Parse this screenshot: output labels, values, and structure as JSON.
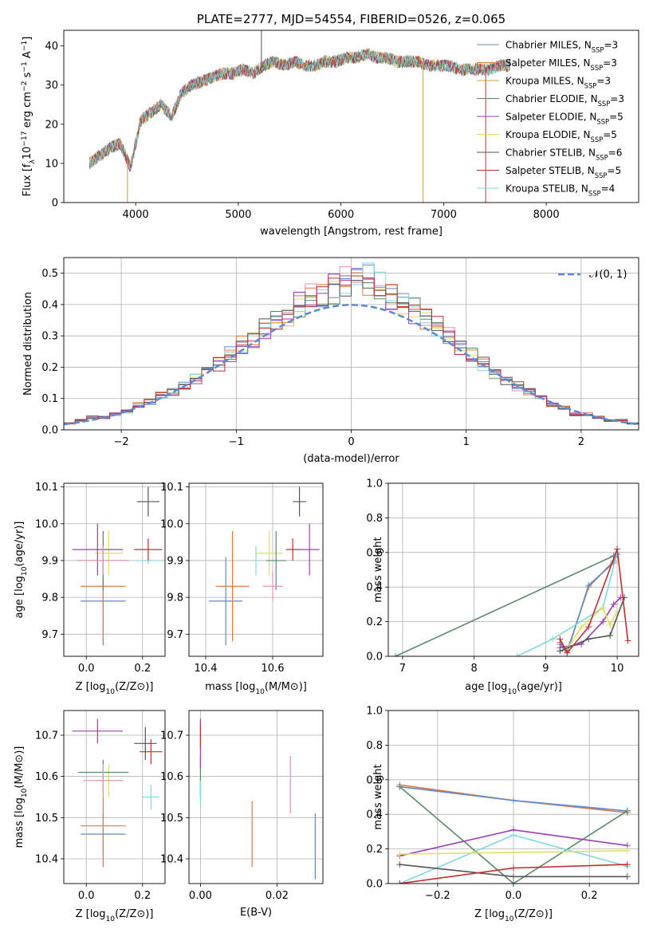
{
  "chart_data": [
    {
      "id": "spectrum",
      "type": "line",
      "title": "PLATE=2777, MJD=54554, FIBERID=0526, z=0.065",
      "xlabel": "wavelength [Angstrom, rest frame]",
      "ylabel_parts": [
        "Flux [f",
        "λ",
        "10",
        "−17",
        " erg cm",
        "−2",
        " s",
        "−1",
        " A",
        "−1",
        "]"
      ],
      "xlim": [
        3300,
        8900
      ],
      "ylim": [
        0,
        44
      ],
      "xticks": [
        4000,
        5000,
        6000,
        7000,
        8000
      ],
      "yticks": [
        0,
        10,
        20,
        30,
        40
      ],
      "grid": false,
      "legend_position": "top-right",
      "legend": [
        {
          "name": "Chabrier MILES",
          "nssp": "3",
          "color": "#5b8fa8"
        },
        {
          "name": "Salpeter MILES",
          "nssp": "3",
          "color": "#e27a3f"
        },
        {
          "name": "Kroupa MILES",
          "nssp": "3",
          "color": "#c8a040"
        },
        {
          "name": "Chabrier ELODIE",
          "nssp": "3",
          "color": "#5a8a6a"
        },
        {
          "name": "Salpeter ELODIE",
          "nssp": "5",
          "color": "#9a3fb5"
        },
        {
          "name": "Kroupa ELODIE",
          "nssp": "5",
          "color": "#e0e060"
        },
        {
          "name": "Chabrier STELIB",
          "nssp": "6",
          "color": "#555555"
        },
        {
          "name": "Salpeter STELIB",
          "nssp": "5",
          "color": "#c03030"
        },
        {
          "name": "Kroupa STELIB",
          "nssp": "4",
          "color": "#80d8e0"
        }
      ],
      "data_sub": "SSP",
      "x": [
        3550,
        3650,
        3750,
        3850,
        3950,
        4050,
        4150,
        4250,
        4350,
        4450,
        4550,
        4650,
        4750,
        4850,
        4950,
        5050,
        5150,
        5250,
        5350,
        5450,
        5550,
        5650,
        5750,
        5850,
        5950,
        6050,
        6150,
        6250,
        6350,
        6450,
        6550,
        6650,
        6750,
        6850,
        6950,
        7050,
        7150,
        7250,
        7350,
        7450,
        7550,
        7650
      ],
      "y": [
        10,
        12,
        14,
        15,
        9,
        21,
        23,
        25,
        22,
        28,
        30,
        31,
        32,
        33,
        33,
        34,
        33,
        35,
        36,
        35,
        36,
        35,
        35,
        36,
        36,
        37,
        37,
        38,
        37,
        37,
        36,
        36,
        36,
        35,
        35,
        35,
        34,
        34,
        34,
        34,
        35,
        35
      ]
    },
    {
      "id": "residuals",
      "type": "line",
      "xlabel": "(data-model)/error",
      "ylabel": "Normed distribution",
      "xlim": [
        -2.5,
        2.5
      ],
      "ylim": [
        0,
        0.55
      ],
      "xticks": [
        -2,
        -1,
        0,
        1,
        2
      ],
      "xtick_labels": [
        "−2",
        "−1",
        "0",
        "1",
        "2"
      ],
      "yticks": [
        0.0,
        0.1,
        0.2,
        0.3,
        0.4,
        0.5
      ],
      "ytick_labels": [
        "0.0",
        "0.1",
        "0.2",
        "0.3",
        "0.4",
        "0.5"
      ],
      "grid": true,
      "legend_position": "top-right",
      "legend": [
        {
          "name": "𝒩(0, 1)",
          "color": "#5b8ad8",
          "style": "dashed"
        }
      ],
      "bin_centers": [
        -2.45,
        -2.35,
        -2.25,
        -2.15,
        -2.05,
        -1.95,
        -1.85,
        -1.75,
        -1.65,
        -1.55,
        -1.45,
        -1.35,
        -1.25,
        -1.15,
        -1.05,
        -0.95,
        -0.85,
        -0.75,
        -0.65,
        -0.55,
        -0.45,
        -0.35,
        -0.25,
        -0.15,
        -0.05,
        0.05,
        0.15,
        0.25,
        0.35,
        0.45,
        0.55,
        0.65,
        0.75,
        0.85,
        0.95,
        1.05,
        1.15,
        1.25,
        1.35,
        1.45,
        1.55,
        1.65,
        1.75,
        1.85,
        1.95,
        2.05,
        2.15,
        2.25,
        2.35,
        2.45
      ],
      "histogram_heights": [
        0.02,
        0.03,
        0.04,
        0.04,
        0.05,
        0.06,
        0.08,
        0.09,
        0.11,
        0.12,
        0.14,
        0.16,
        0.18,
        0.21,
        0.24,
        0.27,
        0.29,
        0.32,
        0.35,
        0.37,
        0.4,
        0.42,
        0.43,
        0.45,
        0.47,
        0.47,
        0.48,
        0.46,
        0.43,
        0.4,
        0.38,
        0.35,
        0.33,
        0.3,
        0.27,
        0.24,
        0.21,
        0.18,
        0.16,
        0.14,
        0.12,
        0.1,
        0.08,
        0.07,
        0.05,
        0.05,
        0.04,
        0.03,
        0.03,
        0.02
      ],
      "histogram_count": 9
    },
    {
      "id": "age-vs-Z",
      "type": "scatter",
      "xlabel_parts": [
        "Z [log",
        "10",
        "(Z/Z",
        "⊙",
        ")]"
      ],
      "ylabel_parts": [
        "age  [log",
        "10",
        "(age/yr)]"
      ],
      "xlim": [
        -0.08,
        0.28
      ],
      "ylim": [
        9.64,
        10.11
      ],
      "xticks": [
        0.0,
        0.2
      ],
      "xtick_labels": [
        "0.0",
        "0.2"
      ],
      "yticks": [
        9.7,
        9.8,
        9.9,
        10.0,
        10.1
      ],
      "ytick_labels": [
        "9.7",
        "9.8",
        "9.9",
        "10.0",
        "10.1"
      ],
      "grid": true,
      "points": [
        {
          "x": 0.06,
          "y": 9.79,
          "xerr": 0.08,
          "yerr": 0.12,
          "color": "#5b8ad8"
        },
        {
          "x": 0.06,
          "y": 9.83,
          "xerr": 0.08,
          "yerr": 0.15,
          "color": "#e27a3f"
        },
        {
          "x": 0.08,
          "y": 9.92,
          "xerr": 0.05,
          "yerr": 0.06,
          "color": "#e0e060"
        },
        {
          "x": 0.06,
          "y": 9.9,
          "xerr": 0.09,
          "yerr": 0.08,
          "color": "#5a8a6a"
        },
        {
          "x": 0.04,
          "y": 9.93,
          "xerr": 0.09,
          "yerr": 0.07,
          "color": "#9a3fb5"
        },
        {
          "x": 0.22,
          "y": 9.9,
          "xerr": 0.05,
          "yerr": 0.01,
          "color": "#80d8e0"
        },
        {
          "x": 0.22,
          "y": 10.06,
          "xerr": 0.04,
          "yerr": 0.04,
          "color": "#555555"
        },
        {
          "x": 0.22,
          "y": 9.93,
          "xerr": 0.05,
          "yerr": 0.03,
          "color": "#c03030"
        },
        {
          "x": 0.06,
          "y": 9.9,
          "xerr": 0.09,
          "yerr": 0.04,
          "color": "#e48fb8"
        }
      ]
    },
    {
      "id": "age-vs-mass",
      "type": "scatter",
      "xlabel_parts": [
        "mass [log",
        "10",
        "(M/M",
        "⊙",
        ")]"
      ],
      "xlim": [
        10.35,
        10.75
      ],
      "ylim": [
        9.64,
        10.11
      ],
      "xticks": [
        10.4,
        10.6
      ],
      "xtick_labels": [
        "10.4",
        "10.6"
      ],
      "yticks": [
        9.7,
        9.8,
        9.9,
        10.0,
        10.1
      ],
      "ytick_labels": [
        "9.7",
        "9.8",
        "9.9",
        "10.0",
        "10.1"
      ],
      "grid": true,
      "points": [
        {
          "x": 10.46,
          "y": 9.79,
          "xerr": 0.05,
          "yerr": 0.12,
          "color": "#5b8ad8"
        },
        {
          "x": 10.48,
          "y": 9.83,
          "xerr": 0.05,
          "yerr": 0.15,
          "color": "#e27a3f"
        },
        {
          "x": 10.59,
          "y": 9.92,
          "xerr": 0.04,
          "yerr": 0.06,
          "color": "#e0e060"
        },
        {
          "x": 10.61,
          "y": 9.9,
          "xerr": 0.03,
          "yerr": 0.08,
          "color": "#5a8a6a"
        },
        {
          "x": 10.71,
          "y": 9.93,
          "xerr": 0.03,
          "yerr": 0.07,
          "color": "#9a3fb5"
        },
        {
          "x": 10.55,
          "y": 9.9,
          "xerr": 0.01,
          "yerr": 0.04,
          "color": "#80d8e0"
        },
        {
          "x": 10.68,
          "y": 10.06,
          "xerr": 0.02,
          "yerr": 0.04,
          "color": "#555555"
        },
        {
          "x": 10.66,
          "y": 9.93,
          "xerr": 0.02,
          "yerr": 0.03,
          "color": "#c03030"
        },
        {
          "x": 10.6,
          "y": 9.83,
          "xerr": 0.03,
          "yerr": 0.04,
          "color": "#e48fb8"
        }
      ]
    },
    {
      "id": "weight-vs-age",
      "type": "line",
      "xlabel_parts": [
        "age  [log",
        "10",
        "(age/yr)]"
      ],
      "ylabel": "mass weight",
      "xlim": [
        6.8,
        10.3
      ],
      "ylim": [
        0,
        1
      ],
      "xticks": [
        7,
        8,
        9,
        10
      ],
      "xtick_labels": [
        "7",
        "8",
        "9",
        "10"
      ],
      "yticks": [
        0.0,
        0.2,
        0.4,
        0.6,
        0.8,
        1.0
      ],
      "ytick_labels": [
        "0.0",
        "0.2",
        "0.4",
        "0.6",
        "0.8",
        "1.0"
      ],
      "grid": true,
      "series": [
        {
          "color": "#5a8a6a",
          "x": [
            6.9,
            9.95
          ],
          "y": [
            0.0,
            0.58
          ]
        },
        {
          "color": "#e27a3f",
          "x": [
            9.2,
            9.3,
            9.6,
            9.95,
            10.0
          ],
          "y": [
            0.08,
            0.03,
            0.4,
            0.55,
            0.6
          ]
        },
        {
          "color": "#5b8ad8",
          "x": [
            9.2,
            9.3,
            9.6,
            9.95,
            10.0
          ],
          "y": [
            0.07,
            0.02,
            0.41,
            0.54,
            0.59
          ]
        },
        {
          "color": "#80d8e0",
          "x": [
            8.6,
            9.1,
            9.8,
            10.0
          ],
          "y": [
            0.0,
            0.1,
            0.28,
            0.6
          ]
        },
        {
          "color": "#9a3fb5",
          "x": [
            9.2,
            9.5,
            9.8,
            9.95,
            10.05
          ],
          "y": [
            0.05,
            0.07,
            0.2,
            0.3,
            0.34
          ]
        },
        {
          "color": "#e0e060",
          "x": [
            9.3,
            9.5,
            9.8,
            9.9,
            10.0
          ],
          "y": [
            0.04,
            0.17,
            0.28,
            0.18,
            0.26
          ]
        },
        {
          "color": "#555555",
          "x": [
            9.2,
            9.6,
            9.9,
            10.1
          ],
          "y": [
            0.03,
            0.1,
            0.12,
            0.34
          ]
        },
        {
          "color": "#c03030",
          "x": [
            9.2,
            9.3,
            9.6,
            10.0,
            10.15
          ],
          "y": [
            0.1,
            0.02,
            0.17,
            0.62,
            0.09
          ]
        }
      ]
    },
    {
      "id": "mass-vs-Z",
      "type": "scatter",
      "xlabel_parts": [
        "Z [log",
        "10",
        "(Z/Z",
        "⊙",
        ")]"
      ],
      "ylabel_parts": [
        "mass [log",
        "10",
        "(M/M",
        "⊙",
        ")]"
      ],
      "xlim": [
        -0.08,
        0.28
      ],
      "ylim": [
        10.34,
        10.76
      ],
      "xticks": [
        0.0,
        0.2
      ],
      "xtick_labels": [
        "0.0",
        "0.2"
      ],
      "yticks": [
        10.4,
        10.5,
        10.6,
        10.7
      ],
      "ytick_labels": [
        "10.4",
        "10.5",
        "10.6",
        "10.7"
      ],
      "grid": true,
      "points": [
        {
          "x": 0.06,
          "y": 10.46,
          "xerr": 0.08,
          "yerr": 0.05,
          "color": "#5b8ad8"
        },
        {
          "x": 0.06,
          "y": 10.48,
          "xerr": 0.08,
          "yerr": 0.1,
          "color": "#e27a3f"
        },
        {
          "x": 0.08,
          "y": 10.59,
          "xerr": 0.05,
          "yerr": 0.04,
          "color": "#e0e060"
        },
        {
          "x": 0.06,
          "y": 10.61,
          "xerr": 0.09,
          "yerr": 0.03,
          "color": "#5a8a6a"
        },
        {
          "x": 0.04,
          "y": 10.71,
          "xerr": 0.09,
          "yerr": 0.03,
          "color": "#9a3fb5"
        },
        {
          "x": 0.23,
          "y": 10.55,
          "xerr": 0.03,
          "yerr": 0.03,
          "color": "#80d8e0"
        },
        {
          "x": 0.21,
          "y": 10.68,
          "xerr": 0.04,
          "yerr": 0.04,
          "color": "#555555"
        },
        {
          "x": 0.23,
          "y": 10.66,
          "xerr": 0.04,
          "yerr": 0.03,
          "color": "#c03030"
        },
        {
          "x": 0.06,
          "y": 10.59,
          "xerr": 0.07,
          "yerr": 0.04,
          "color": "#e48fb8"
        }
      ]
    },
    {
      "id": "mass-vs-EBV",
      "type": "scatter",
      "xlabel": "E(B-V)",
      "xlim": [
        -0.003,
        0.032
      ],
      "ylim": [
        10.34,
        10.76
      ],
      "xticks": [
        0.0,
        0.02
      ],
      "xtick_labels": [
        "0.00",
        "0.02"
      ],
      "yticks": [
        10.4,
        10.5,
        10.6,
        10.7
      ],
      "ytick_labels": [
        "10.4",
        "10.5",
        "10.6",
        "10.7"
      ],
      "grid": true,
      "points": [
        {
          "x": 0.03,
          "y": 10.43,
          "xerr": 0,
          "yerr": 0.08,
          "color": "#5b8ad8"
        },
        {
          "x": 0.0135,
          "y": 10.46,
          "xerr": 0,
          "yerr": 0.08,
          "color": "#e27a3f"
        },
        {
          "x": 0.0235,
          "y": 10.58,
          "xerr": 0,
          "yerr": 0.07,
          "color": "#e48fb8"
        },
        {
          "x": 0.0,
          "y": 10.58,
          "xerr": 0,
          "yerr": 0.05,
          "color": "#e0e060"
        },
        {
          "x": 0.0,
          "y": 10.6,
          "xerr": 0,
          "yerr": 0.05,
          "color": "#5a8a6a"
        },
        {
          "x": 0.0,
          "y": 10.68,
          "xerr": 0,
          "yerr": 0.06,
          "color": "#9a3fb5"
        },
        {
          "x": 0.0,
          "y": 10.7,
          "xerr": 0,
          "yerr": 0.03,
          "color": "#c03030"
        },
        {
          "x": 0.0,
          "y": 10.56,
          "xerr": 0,
          "yerr": 0.03,
          "color": "#80d8e0"
        }
      ]
    },
    {
      "id": "weight-vs-Z",
      "type": "line",
      "xlabel_parts": [
        "Z [log",
        "10",
        "(Z/Z",
        "⊙",
        ")]"
      ],
      "ylabel": "mass weight",
      "xlim": [
        -0.33,
        0.33
      ],
      "ylim": [
        0,
        1
      ],
      "xticks": [
        -0.2,
        0.0,
        0.2
      ],
      "xtick_labels": [
        "−0.2",
        "0.0",
        "0.2"
      ],
      "yticks": [
        0.0,
        0.2,
        0.4,
        0.6,
        0.8,
        1.0
      ],
      "ytick_labels": [
        "0.0",
        "0.2",
        "0.4",
        "0.6",
        "0.8",
        "1.0"
      ],
      "grid": true,
      "series": [
        {
          "color": "#e27a3f",
          "x": [
            -0.3,
            0.0,
            0.3
          ],
          "y": [
            0.57,
            0.48,
            0.41
          ]
        },
        {
          "color": "#5b8ad8",
          "x": [
            -0.3,
            0.0,
            0.3
          ],
          "y": [
            0.56,
            0.48,
            0.42
          ]
        },
        {
          "color": "#5a8a6a",
          "x": [
            -0.3,
            0.0,
            0.3
          ],
          "y": [
            0.56,
            0.0,
            0.42
          ]
        },
        {
          "color": "#9a3fb5",
          "x": [
            -0.3,
            0.0,
            0.3
          ],
          "y": [
            0.16,
            0.31,
            0.22
          ]
        },
        {
          "color": "#80d8e0",
          "x": [
            -0.3,
            0.0,
            0.3
          ],
          "y": [
            0.0,
            0.28,
            0.1
          ]
        },
        {
          "color": "#e0e060",
          "x": [
            -0.3,
            0.0,
            0.3
          ],
          "y": [
            0.17,
            0.18,
            0.19
          ]
        },
        {
          "color": "#555555",
          "x": [
            -0.3,
            0.0,
            0.3
          ],
          "y": [
            0.11,
            0.04,
            0.04
          ]
        },
        {
          "color": "#c03030",
          "x": [
            -0.3,
            0.0,
            0.3
          ],
          "y": [
            0.0,
            0.09,
            0.11
          ]
        }
      ]
    }
  ]
}
